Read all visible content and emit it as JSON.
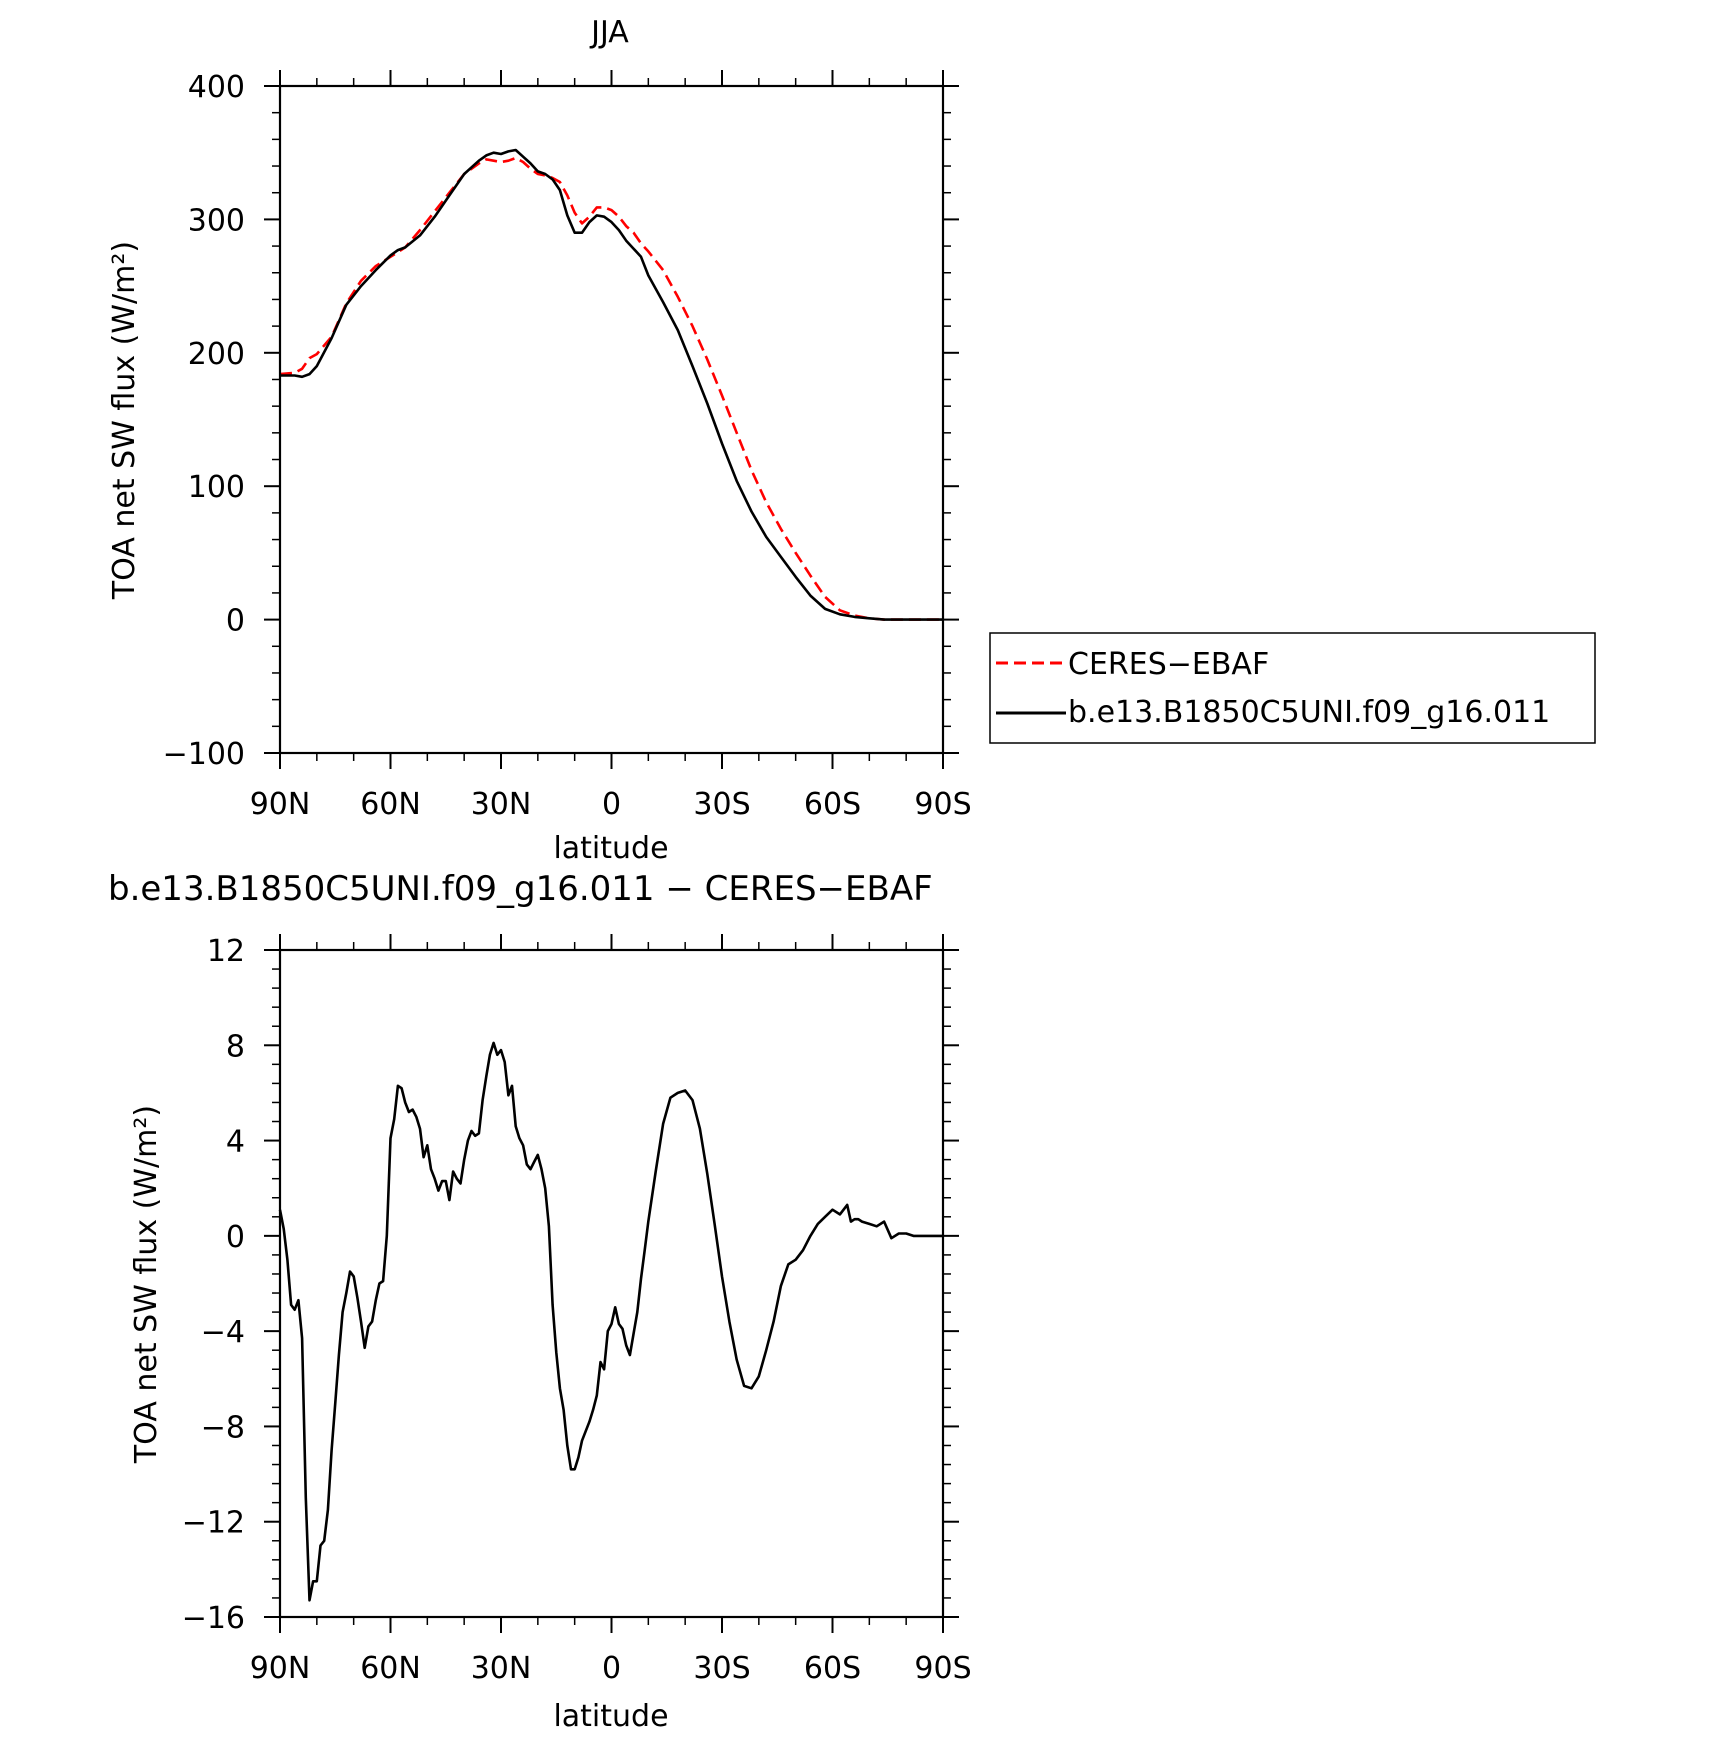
{
  "chart_data": [
    {
      "type": "line",
      "title": "JJA",
      "xlabel": "latitude",
      "ylabel": "TOA net SW flux (W/m²)",
      "xlim": [
        90,
        -90
      ],
      "ylim": [
        -100,
        400
      ],
      "x_ticks": [
        90,
        60,
        30,
        0,
        -30,
        -60,
        -90
      ],
      "x_tick_labels": [
        "90N",
        "60N",
        "30N",
        "0",
        "30S",
        "60S",
        "90S"
      ],
      "y_ticks": [
        -100,
        0,
        100,
        200,
        300,
        400
      ],
      "y_tick_labels": [
        "−100",
        "0",
        "100",
        "200",
        "300",
        "400"
      ],
      "legend": {
        "placement": "outside-right",
        "entries": [
          "CERES−EBAF",
          "b.e13.B1850C5UNI.f09_g16.011"
        ]
      },
      "series": [
        {
          "name": "CERES−EBAF",
          "color": "#ff0000",
          "dash": "dashed",
          "x": [
            90,
            86,
            84,
            82,
            80,
            76,
            72,
            68,
            64,
            60,
            56,
            52,
            48,
            44,
            40,
            36,
            34,
            32,
            30,
            28,
            26,
            24,
            22,
            20,
            18,
            16,
            14,
            12,
            10,
            8,
            6,
            4,
            2,
            0,
            -2,
            -4,
            -6,
            -8,
            -10,
            -14,
            -18,
            -22,
            -26,
            -30,
            -34,
            -38,
            -42,
            -46,
            -50,
            -54,
            -58,
            -62,
            -66,
            -70,
            -74,
            -78,
            -82,
            -86,
            -90
          ],
          "y": [
            184,
            185,
            188,
            196,
            199,
            212,
            237,
            254,
            265,
            272,
            279,
            292,
            306,
            320,
            334,
            342,
            345,
            344,
            343,
            344,
            346,
            343,
            338,
            334,
            333,
            331,
            328,
            318,
            305,
            297,
            302,
            309,
            309,
            307,
            302,
            295,
            290,
            282,
            276,
            262,
            242,
            220,
            195,
            168,
            140,
            112,
            88,
            68,
            50,
            33,
            17,
            7,
            3,
            1,
            0,
            0,
            0,
            0,
            0
          ]
        },
        {
          "name": "b.e13.B1850C5UNI.f09_g16.011",
          "color": "#000000",
          "dash": "solid",
          "x": [
            90,
            86,
            84,
            82,
            80,
            76,
            72,
            68,
            64,
            60,
            58,
            56,
            52,
            48,
            44,
            40,
            36,
            34,
            32,
            30,
            28,
            26,
            24,
            22,
            20,
            18,
            16,
            14,
            12,
            10,
            8,
            6,
            4,
            2,
            0,
            -2,
            -4,
            -6,
            -8,
            -10,
            -14,
            -18,
            -22,
            -26,
            -30,
            -34,
            -38,
            -42,
            -46,
            -50,
            -54,
            -58,
            -62,
            -66,
            -70,
            -74,
            -78,
            -82,
            -86,
            -90
          ],
          "y": [
            183,
            183,
            182,
            184,
            190,
            211,
            236,
            250,
            262,
            273,
            277,
            279,
            288,
            302,
            318,
            334,
            344,
            348,
            350,
            349,
            351,
            352,
            347,
            342,
            336,
            334,
            330,
            322,
            303,
            290,
            290,
            298,
            303,
            302,
            298,
            292,
            284,
            278,
            272,
            258,
            238,
            217,
            190,
            162,
            132,
            104,
            81,
            62,
            47,
            32,
            18,
            8,
            4,
            2,
            1,
            0,
            0,
            0,
            0,
            0
          ]
        }
      ]
    },
    {
      "type": "line",
      "title": "b.e13.B1850C5UNI.f09_g16.011 − CERES−EBAF",
      "xlabel": "latitude",
      "ylabel": "TOA net SW flux (W/m²)",
      "xlim": [
        90,
        -90
      ],
      "ylim": [
        -16,
        12
      ],
      "x_ticks": [
        90,
        60,
        30,
        0,
        -30,
        -60,
        -90
      ],
      "x_tick_labels": [
        "90N",
        "60N",
        "30N",
        "0",
        "30S",
        "60S",
        "90S"
      ],
      "y_ticks": [
        -16,
        -12,
        -8,
        -4,
        0,
        4,
        8,
        12
      ],
      "y_tick_labels": [
        "−16",
        "−12",
        "−8",
        "−4",
        "0",
        "4",
        "8",
        "12"
      ],
      "series": [
        {
          "color": "#000000",
          "dash": "solid",
          "x": [
            90,
            89,
            88,
            87,
            86,
            85,
            84,
            83,
            82,
            81,
            80,
            79,
            78,
            77,
            76,
            75,
            74,
            73,
            72,
            71,
            70,
            69,
            68,
            67,
            66,
            65,
            64,
            63,
            62,
            61,
            60,
            59,
            58,
            57,
            56,
            55,
            54,
            53,
            52,
            51,
            50,
            49,
            48,
            47,
            46,
            45,
            44,
            43,
            42,
            41,
            40,
            39,
            38,
            37,
            36,
            35,
            34,
            33,
            32,
            31,
            30,
            29,
            28,
            27,
            26,
            25,
            24,
            23,
            22,
            21,
            20,
            19,
            18,
            17,
            16,
            15,
            14,
            13,
            12,
            11,
            10,
            9,
            8,
            7,
            6,
            5,
            4,
            3,
            2,
            1,
            0,
            -1,
            -2,
            -3,
            -4,
            -5,
            -6,
            -7,
            -8,
            -9,
            -10,
            -12,
            -14,
            -16,
            -18,
            -20,
            -22,
            -24,
            -26,
            -28,
            -30,
            -32,
            -34,
            -36,
            -38,
            -40,
            -42,
            -44,
            -46,
            -48,
            -50,
            -52,
            -54,
            -56,
            -58,
            -60,
            -62,
            -64,
            -65,
            -66,
            -67,
            -68,
            -70,
            -72,
            -74,
            -76,
            -78,
            -79,
            -80,
            -82,
            -84,
            -86,
            -88,
            -90
          ],
          "y": [
            1.1,
            0.3,
            -1.0,
            -2.9,
            -3.1,
            -2.7,
            -4.3,
            -11.0,
            -15.3,
            -14.5,
            -14.5,
            -13.0,
            -12.8,
            -11.5,
            -9.0,
            -7.0,
            -5.0,
            -3.2,
            -2.4,
            -1.5,
            -1.7,
            -2.6,
            -3.6,
            -4.7,
            -3.8,
            -3.6,
            -2.7,
            -2.0,
            -1.9,
            0.0,
            4.1,
            4.9,
            6.3,
            6.2,
            5.6,
            5.2,
            5.3,
            5.0,
            4.5,
            3.3,
            3.8,
            2.8,
            2.4,
            1.9,
            2.3,
            2.3,
            1.5,
            2.7,
            2.4,
            2.2,
            3.2,
            4.0,
            4.4,
            4.2,
            4.3,
            5.7,
            6.7,
            7.6,
            8.1,
            7.6,
            7.8,
            7.3,
            5.9,
            6.3,
            4.6,
            4.1,
            3.8,
            3.0,
            2.8,
            3.1,
            3.4,
            2.8,
            2.0,
            0.4,
            -2.9,
            -4.9,
            -6.4,
            -7.3,
            -8.8,
            -9.8,
            -9.8,
            -9.3,
            -8.6,
            -8.2,
            -7.8,
            -7.3,
            -6.7,
            -5.3,
            -5.6,
            -4.0,
            -3.7,
            -3.0,
            -3.7,
            -3.9,
            -4.6,
            -5.0,
            -4.1,
            -3.2,
            -1.8,
            -0.6,
            0.6,
            2.7,
            4.7,
            5.8,
            6.0,
            6.1,
            5.7,
            4.5,
            2.6,
            0.5,
            -1.7,
            -3.6,
            -5.2,
            -6.3,
            -6.4,
            -5.9,
            -4.8,
            -3.6,
            -2.1,
            -1.2,
            -1.0,
            -0.6,
            0.0,
            0.5,
            0.8,
            1.1,
            0.9,
            1.3,
            0.6,
            0.7,
            0.7,
            0.6,
            0.5,
            0.4,
            0.6,
            -0.1,
            0.1,
            0.1,
            0.1,
            0.0,
            0.0,
            0.0,
            0.0,
            0.0
          ]
        }
      ]
    }
  ]
}
